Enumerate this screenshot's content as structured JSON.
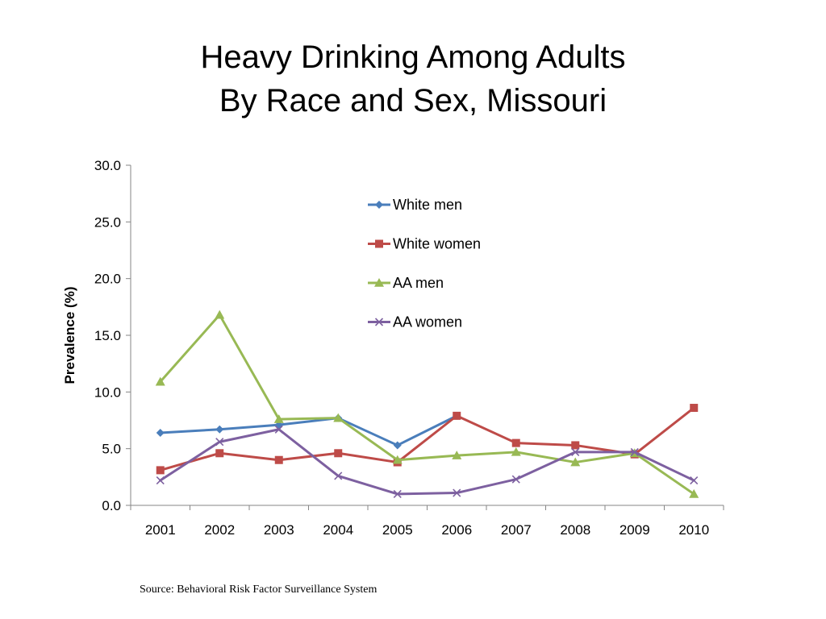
{
  "slide": {
    "title_line1": "Heavy Drinking Among Adults",
    "title_line2": "By Race and Sex, Missouri",
    "source": "Source: Behavioral Risk Factor Surveillance System"
  },
  "chart_data": {
    "type": "line",
    "title": "Heavy Drinking Among Adults By Race and Sex, Missouri",
    "xlabel": "",
    "ylabel": "Prevalence (%)",
    "categories": [
      "2001",
      "2002",
      "2003",
      "2004",
      "2005",
      "2006",
      "2007",
      "2008",
      "2009",
      "2010"
    ],
    "ylim": [
      0,
      30
    ],
    "yticks": [
      "0.0",
      "5.0",
      "10.0",
      "15.0",
      "20.0",
      "25.0",
      "30.0"
    ],
    "grid": false,
    "legend_position": "top-center-right inside plot",
    "series": [
      {
        "name": "White men",
        "color": "#4A7EBB",
        "marker": "diamond",
        "values": [
          6.4,
          6.7,
          7.1,
          7.7,
          5.3,
          7.9,
          null,
          null,
          null,
          null
        ]
      },
      {
        "name": "White women",
        "color": "#BE4B48",
        "marker": "square",
        "values": [
          3.1,
          4.6,
          4.0,
          4.6,
          3.8,
          7.9,
          5.5,
          5.3,
          4.5,
          8.6
        ]
      },
      {
        "name": "AA men",
        "color": "#98B954",
        "marker": "triangle",
        "values": [
          10.9,
          16.8,
          7.6,
          7.7,
          4.0,
          4.4,
          4.7,
          3.8,
          4.6,
          1.0
        ]
      },
      {
        "name": "AA women",
        "color": "#7D60A0",
        "marker": "x",
        "values": [
          2.2,
          5.6,
          6.7,
          2.6,
          1.0,
          1.1,
          2.3,
          4.7,
          4.7,
          2.2
        ]
      }
    ]
  }
}
